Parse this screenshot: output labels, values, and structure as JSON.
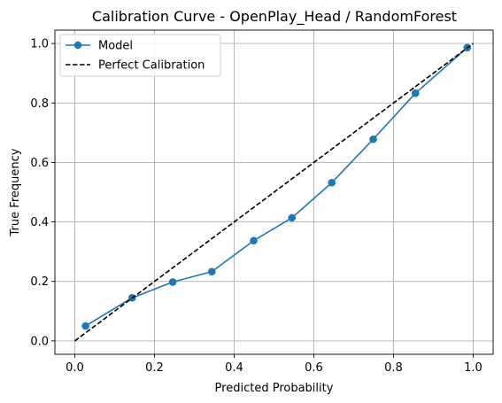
{
  "chart_data": {
    "type": "line",
    "title": "Calibration Curve - OpenPlay_Head / RandomForest",
    "xlabel": "Predicted Probability",
    "ylabel": "True Frequency",
    "xlim": [
      -0.05,
      1.05
    ],
    "ylim": [
      -0.045,
      1.045
    ],
    "xticks": [
      0.0,
      0.2,
      0.4,
      0.6,
      0.8,
      1.0
    ],
    "yticks": [
      0.0,
      0.2,
      0.4,
      0.6,
      0.8,
      1.0
    ],
    "xtick_labels": [
      "0.0",
      "0.2",
      "0.4",
      "0.6",
      "0.8",
      "1.0"
    ],
    "ytick_labels": [
      "0.0",
      "0.2",
      "0.4",
      "0.6",
      "0.8",
      "1.0"
    ],
    "grid": true,
    "legend_position": "top-left",
    "series": [
      {
        "name": "Model",
        "style": "solid-with-markers",
        "color": "#1f77b4",
        "x": [
          0.027,
          0.144,
          0.246,
          0.344,
          0.449,
          0.545,
          0.645,
          0.749,
          0.855,
          0.985
        ],
        "y": [
          0.05,
          0.145,
          0.198,
          0.233,
          0.337,
          0.414,
          0.532,
          0.678,
          0.833,
          0.986
        ]
      },
      {
        "name": "Perfect Calibration",
        "style": "dashed",
        "color": "#000000",
        "x": [
          0.0,
          1.0
        ],
        "y": [
          0.0,
          1.0
        ]
      }
    ]
  }
}
